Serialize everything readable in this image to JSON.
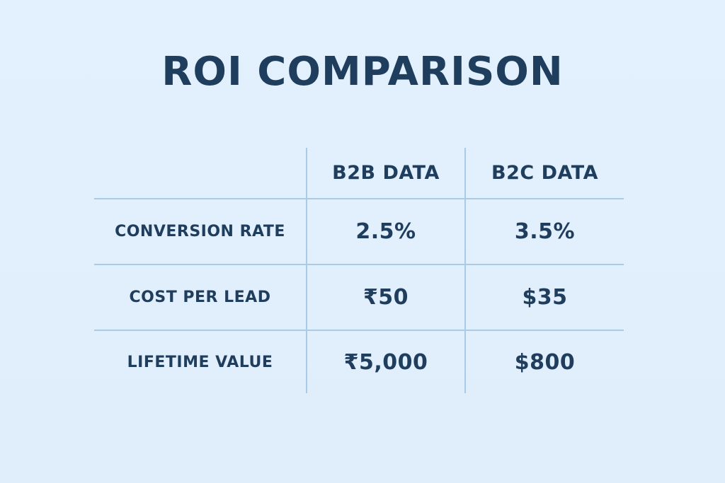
{
  "title": "ROI COMPARISON",
  "colors": {
    "background": "#e2effc",
    "text": "#1f3d5c",
    "grid": "#a9cbe8"
  },
  "chart_data": {
    "type": "table",
    "title": "ROI COMPARISON",
    "columns": [
      "B2B DATA",
      "B2C DATA"
    ],
    "rows": [
      {
        "label": "CONVERSION RATE",
        "values": [
          "2.5%",
          "3.5%"
        ]
      },
      {
        "label": "COST PER LEAD",
        "values": [
          "₹50",
          "$35"
        ]
      },
      {
        "label": "LIFETIME VALUE",
        "values": [
          "₹5,000",
          "$800"
        ]
      }
    ]
  }
}
